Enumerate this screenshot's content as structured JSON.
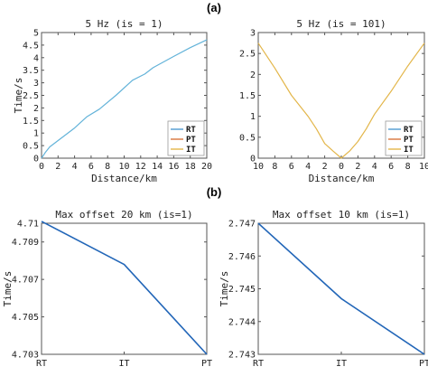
{
  "figure": {
    "panel_a_label": "(a)",
    "panel_b_label": "(b)"
  },
  "chart_data": [
    {
      "type": "line",
      "title": "5 Hz (is = 1)",
      "xlabel": "Distance/km",
      "ylabel": "Time/s",
      "xlim": [
        0,
        20
      ],
      "ylim": [
        0,
        5
      ],
      "x_ticks": [
        0,
        2,
        4,
        6,
        8,
        10,
        12,
        14,
        16,
        18,
        20
      ],
      "x_tick_labels": [
        "0",
        "2",
        "4",
        "6",
        "8",
        "10",
        "12",
        "14",
        "16",
        "18",
        "20"
      ],
      "y_ticks": [
        0,
        0.5,
        1,
        1.5,
        2,
        2.5,
        3,
        3.5,
        4,
        4.5,
        5
      ],
      "y_tick_labels": [
        "0",
        "0.5",
        "1",
        "1.5",
        "2",
        "2.5",
        "3",
        "3.5",
        "4",
        "4.5",
        "5"
      ],
      "legend_position": "bottom-right",
      "legend": [
        {
          "label": "RT",
          "color": "#4f9bd1"
        },
        {
          "label": "PT",
          "color": "#d9743a"
        },
        {
          "label": "IT",
          "color": "#e3b64a"
        }
      ],
      "series": [
        {
          "color": "#63b3d9",
          "x": [
            0,
            0.5,
            1,
            2,
            4,
            5.5,
            7,
            9,
            11,
            12.5,
            13.5,
            16,
            18,
            20
          ],
          "y": [
            0,
            0.25,
            0.45,
            0.7,
            1.2,
            1.65,
            1.95,
            2.5,
            3.1,
            3.35,
            3.6,
            4.05,
            4.4,
            4.71
          ]
        }
      ]
    },
    {
      "type": "line",
      "title": "5 Hz (is = 101)",
      "xlabel": "Distance/km",
      "ylabel": "",
      "xlim": [
        -10,
        10
      ],
      "ylim": [
        0,
        3
      ],
      "x_ticks": [
        -10,
        -8,
        -6,
        -4,
        -2,
        0,
        2,
        4,
        6,
        8,
        10
      ],
      "x_tick_labels": [
        "10",
        "8",
        "6",
        "4",
        "2",
        "0",
        "2",
        "4",
        "6",
        "8",
        "10"
      ],
      "y_ticks": [
        0,
        0.5,
        1,
        1.5,
        2,
        2.5,
        3
      ],
      "y_tick_labels": [
        "0",
        "0.5",
        "1",
        "1.5",
        "2",
        "2.5",
        "3"
      ],
      "legend_position": "bottom-right",
      "legend": [
        {
          "label": "RT",
          "color": "#4f9bd1"
        },
        {
          "label": "PT",
          "color": "#d9743a"
        },
        {
          "label": "IT",
          "color": "#e3b64a"
        }
      ],
      "series": [
        {
          "color": "#e3b64a",
          "x": [
            -10,
            -8,
            -6,
            -4,
            -3,
            -2,
            -1,
            0,
            1,
            2,
            3,
            4,
            6,
            8,
            10
          ],
          "y": [
            2.747,
            2.15,
            1.5,
            1.0,
            0.7,
            0.35,
            0.17,
            0,
            0.17,
            0.4,
            0.7,
            1.05,
            1.6,
            2.2,
            2.747
          ]
        }
      ]
    },
    {
      "type": "line",
      "title": "Max offset 20 km (is=1)",
      "xlabel": "",
      "ylabel": "Time/s",
      "categories": [
        "RT",
        "IT",
        "PT"
      ],
      "ylim": [
        4.703,
        4.71
      ],
      "y_ticks": [
        4.703,
        4.705,
        4.707,
        4.709,
        4.71
      ],
      "y_tick_labels": [
        "4.703",
        "4.705",
        "4.707",
        "4.709",
        "4.71"
      ],
      "series": [
        {
          "color": "#2266b8",
          "values": [
            4.7101,
            4.7078,
            4.703
          ]
        }
      ]
    },
    {
      "type": "line",
      "title": "Max offset 10 km (is=1)",
      "xlabel": "",
      "ylabel": "Time/s",
      "categories": [
        "RT",
        "IT",
        "PT"
      ],
      "ylim": [
        2.743,
        2.747
      ],
      "y_ticks": [
        2.743,
        2.744,
        2.745,
        2.746,
        2.747
      ],
      "y_tick_labels": [
        "2.743",
        "2.744",
        "2.745",
        "2.746",
        "2.747"
      ],
      "series": [
        {
          "color": "#2266b8",
          "values": [
            2.747,
            2.7447,
            2.743
          ]
        }
      ]
    }
  ]
}
